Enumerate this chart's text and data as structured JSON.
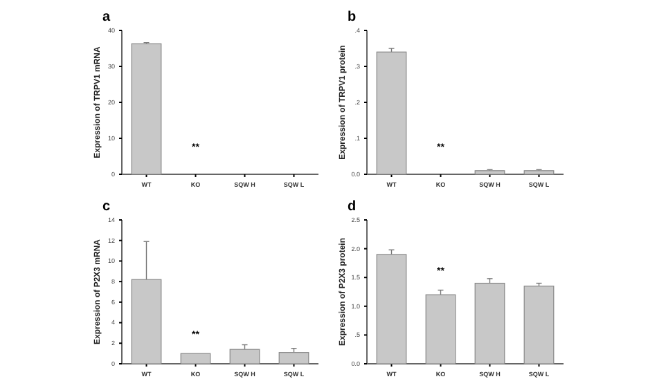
{
  "chart_data": [
    {
      "type": "bar",
      "title": "a",
      "ylabel": "Expression of TRPV1 mRNA",
      "categories": [
        "WT",
        "KO",
        "SQW  H",
        "SQW  L"
      ],
      "values": [
        36.3,
        0,
        0,
        0
      ],
      "errors": [
        [
          36.3,
          36.6
        ],
        null,
        null,
        null
      ],
      "color": "#c8c8c8",
      "ylim": [
        0,
        40
      ],
      "yticks": [
        0,
        10,
        20,
        30,
        40
      ],
      "annotations": [
        "**"
      ]
    },
    {
      "type": "bar",
      "title": "b",
      "ylabel": "Expression of TRPV1 protein",
      "categories": [
        "WT",
        "KO",
        "SQW  H",
        "SQW  L"
      ],
      "values": [
        0.34,
        0,
        0.01,
        0.01
      ],
      "errors": [
        [
          0.34,
          0.35
        ],
        null,
        [
          0.01,
          0.013
        ],
        [
          0.01,
          0.013
        ]
      ],
      "color": "#c8c8c8",
      "ylim": [
        0,
        0.4
      ],
      "yticks": [
        {
          "value": 0,
          "label": "0.0"
        },
        {
          "value": 0.1,
          "label": ".1"
        },
        {
          "value": 0.2,
          "label": ".2"
        },
        {
          "value": 0.3,
          "label": ".3"
        },
        {
          "value": 0.4,
          "label": ".4"
        }
      ],
      "annotations": [
        "**"
      ]
    },
    {
      "type": "bar",
      "title": "c",
      "ylabel": "Expression of P2X3 mRNA",
      "categories": [
        "WT",
        "KO",
        "SQW  H",
        "SQW  L"
      ],
      "values": [
        8.2,
        1.0,
        1.4,
        1.1
      ],
      "errors": [
        [
          8.2,
          11.9
        ],
        null,
        [
          1.4,
          1.85
        ],
        [
          1.1,
          1.5
        ]
      ],
      "color": "#c8c8c8",
      "ylim": [
        0,
        14
      ],
      "yticks": [
        0,
        2,
        4,
        6,
        8,
        10,
        12,
        14
      ],
      "annotations": [
        "**"
      ]
    },
    {
      "type": "bar",
      "title": "d",
      "ylabel": "Expression of P2X3 protein",
      "categories": [
        "WT",
        "KO",
        "SQW  H",
        "SQW  L"
      ],
      "values": [
        1.9,
        1.2,
        1.4,
        1.35
      ],
      "errors": [
        [
          1.9,
          1.98
        ],
        [
          1.2,
          1.28
        ],
        [
          1.4,
          1.48
        ],
        [
          1.35,
          1.4
        ]
      ],
      "color": "#c8c8c8",
      "ylim": [
        0,
        2.5
      ],
      "yticks": [
        {
          "value": 0,
          "label": "0.0"
        },
        {
          "value": 0.5,
          "label": ".5"
        },
        {
          "value": 1,
          "label": "1.0"
        },
        {
          "value": 1.5,
          "label": "1.5"
        },
        {
          "value": 2,
          "label": "2.0"
        },
        {
          "value": 2.5,
          "label": "2.5"
        }
      ],
      "annotations": [
        "**"
      ]
    }
  ]
}
